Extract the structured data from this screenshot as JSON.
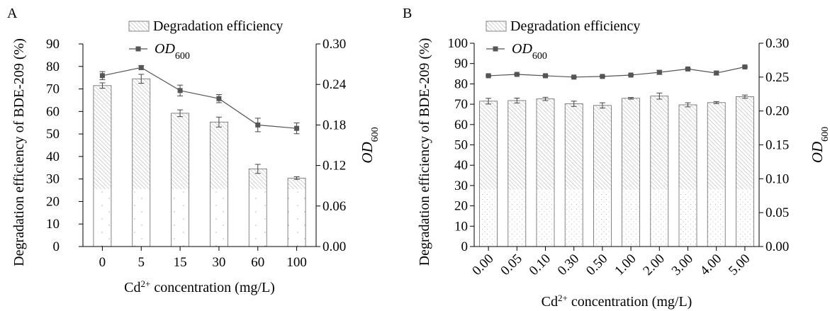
{
  "chart_data": [
    {
      "panel_label": "A",
      "type": "bar",
      "categories": [
        "0",
        "5",
        "15",
        "30",
        "60",
        "100"
      ],
      "series": [
        {
          "name": "Degradation efficiency",
          "type": "bar",
          "axis": "left",
          "values": [
            71.5,
            74.5,
            59.2,
            55.3,
            34.5,
            30.4
          ],
          "errors": [
            1.2,
            2.0,
            1.5,
            2.2,
            2.0,
            0.6
          ]
        },
        {
          "name": "OD",
          "name_sub": "600",
          "type": "line",
          "axis": "right",
          "values": [
            0.253,
            0.265,
            0.231,
            0.219,
            0.18,
            0.175
          ],
          "errors": [
            0.006,
            0.003,
            0.008,
            0.006,
            0.01,
            0.008
          ]
        }
      ],
      "xlabel": "Cd",
      "xlabel_sup": "2+",
      "xlabel_tail": " concentration (mg/L)",
      "ylabel": "Degradation efficiency of BDE-209 (%)",
      "y2label": "OD",
      "y2label_sub": "600",
      "ylim": [
        0,
        90
      ],
      "yticks": [
        "0",
        "10",
        "20",
        "30",
        "40",
        "50",
        "60",
        "70",
        "80",
        "90"
      ],
      "y2lim": [
        0,
        0.3
      ],
      "y2ticks": [
        "0.00",
        "0.06",
        "0.12",
        "0.18",
        "0.24",
        "0.30"
      ],
      "legend": "top"
    },
    {
      "panel_label": "B",
      "type": "bar",
      "categories": [
        "0.00",
        "0.05",
        "0.10",
        "0.30",
        "0.50",
        "1.00",
        "2.00",
        "3.00",
        "4.00",
        "5.00"
      ],
      "series": [
        {
          "name": "Degradation efficiency",
          "type": "bar",
          "axis": "left",
          "values": [
            71.5,
            71.8,
            72.6,
            70.2,
            69.4,
            72.9,
            74.0,
            69.7,
            70.8,
            73.7
          ],
          "errors": [
            1.4,
            1.2,
            0.8,
            1.3,
            1.3,
            0.4,
            1.5,
            1.0,
            0.5,
            0.8
          ]
        },
        {
          "name": "OD",
          "name_sub": "600",
          "type": "line",
          "axis": "right",
          "values": [
            0.252,
            0.254,
            0.252,
            0.25,
            0.251,
            0.253,
            0.257,
            0.262,
            0.256,
            0.265
          ],
          "errors": [
            0.001,
            0.001,
            0.001,
            0.001,
            0.001,
            0.001,
            0.003,
            0.001,
            0.003,
            0.001
          ]
        }
      ],
      "xlabel": "Cd",
      "xlabel_sup": "2+",
      "xlabel_tail": " concentration (mg/L)",
      "ylabel": "Degradation efficiency of BDE-209 (%)",
      "y2label": "OD",
      "y2label_sub": "600",
      "ylim": [
        0,
        100
      ],
      "yticks": [
        "0",
        "10",
        "20",
        "30",
        "40",
        "50",
        "60",
        "70",
        "80",
        "90",
        "100"
      ],
      "y2lim": [
        0,
        0.3
      ],
      "y2ticks": [
        "0.00",
        "0.05",
        "0.10",
        "0.15",
        "0.20",
        "0.25",
        "0.30"
      ],
      "legend": "top-left",
      "xtick_rotation": "-45"
    }
  ]
}
